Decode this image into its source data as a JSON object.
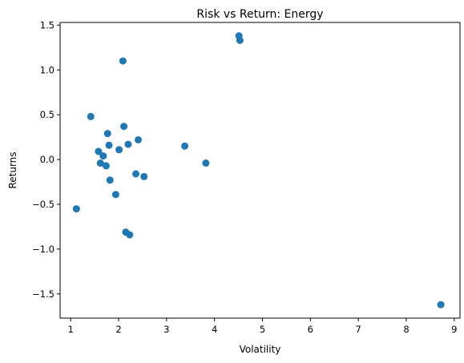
{
  "chart_data": {
    "type": "scatter",
    "title": "Risk vs Return: Energy",
    "xlabel": "Volatility",
    "ylabel": "Returns",
    "xlim": [
      0.78,
      9.12
    ],
    "ylim": [
      -1.77,
      1.53
    ],
    "xticks": [
      1,
      2,
      3,
      4,
      5,
      6,
      7,
      8,
      9
    ],
    "yticks": [
      -1.5,
      -1.0,
      -0.5,
      0.0,
      0.5,
      1.0,
      1.5
    ],
    "ytick_labels": [
      "−1.5",
      "−1.0",
      "−0.5",
      "0.0",
      "0.5",
      "1.0",
      "1.5"
    ],
    "grid": false,
    "marker_color": "#1f77b4",
    "points": [
      {
        "x": 1.12,
        "y": -0.55
      },
      {
        "x": 1.42,
        "y": 0.48
      },
      {
        "x": 1.58,
        "y": 0.09
      },
      {
        "x": 1.62,
        "y": -0.04
      },
      {
        "x": 1.68,
        "y": 0.04
      },
      {
        "x": 1.74,
        "y": -0.07
      },
      {
        "x": 1.77,
        "y": 0.29
      },
      {
        "x": 1.8,
        "y": 0.16
      },
      {
        "x": 1.82,
        "y": -0.23
      },
      {
        "x": 1.94,
        "y": -0.39
      },
      {
        "x": 2.01,
        "y": 0.11
      },
      {
        "x": 2.09,
        "y": 1.1
      },
      {
        "x": 2.11,
        "y": 0.37
      },
      {
        "x": 2.15,
        "y": -0.81
      },
      {
        "x": 2.2,
        "y": 0.17
      },
      {
        "x": 2.23,
        "y": -0.84
      },
      {
        "x": 2.36,
        "y": -0.16
      },
      {
        "x": 2.41,
        "y": 0.22
      },
      {
        "x": 2.53,
        "y": -0.19
      },
      {
        "x": 3.38,
        "y": 0.15
      },
      {
        "x": 3.82,
        "y": -0.04
      },
      {
        "x": 4.51,
        "y": 1.38
      },
      {
        "x": 4.53,
        "y": 1.33
      },
      {
        "x": 8.72,
        "y": -1.62
      }
    ]
  }
}
